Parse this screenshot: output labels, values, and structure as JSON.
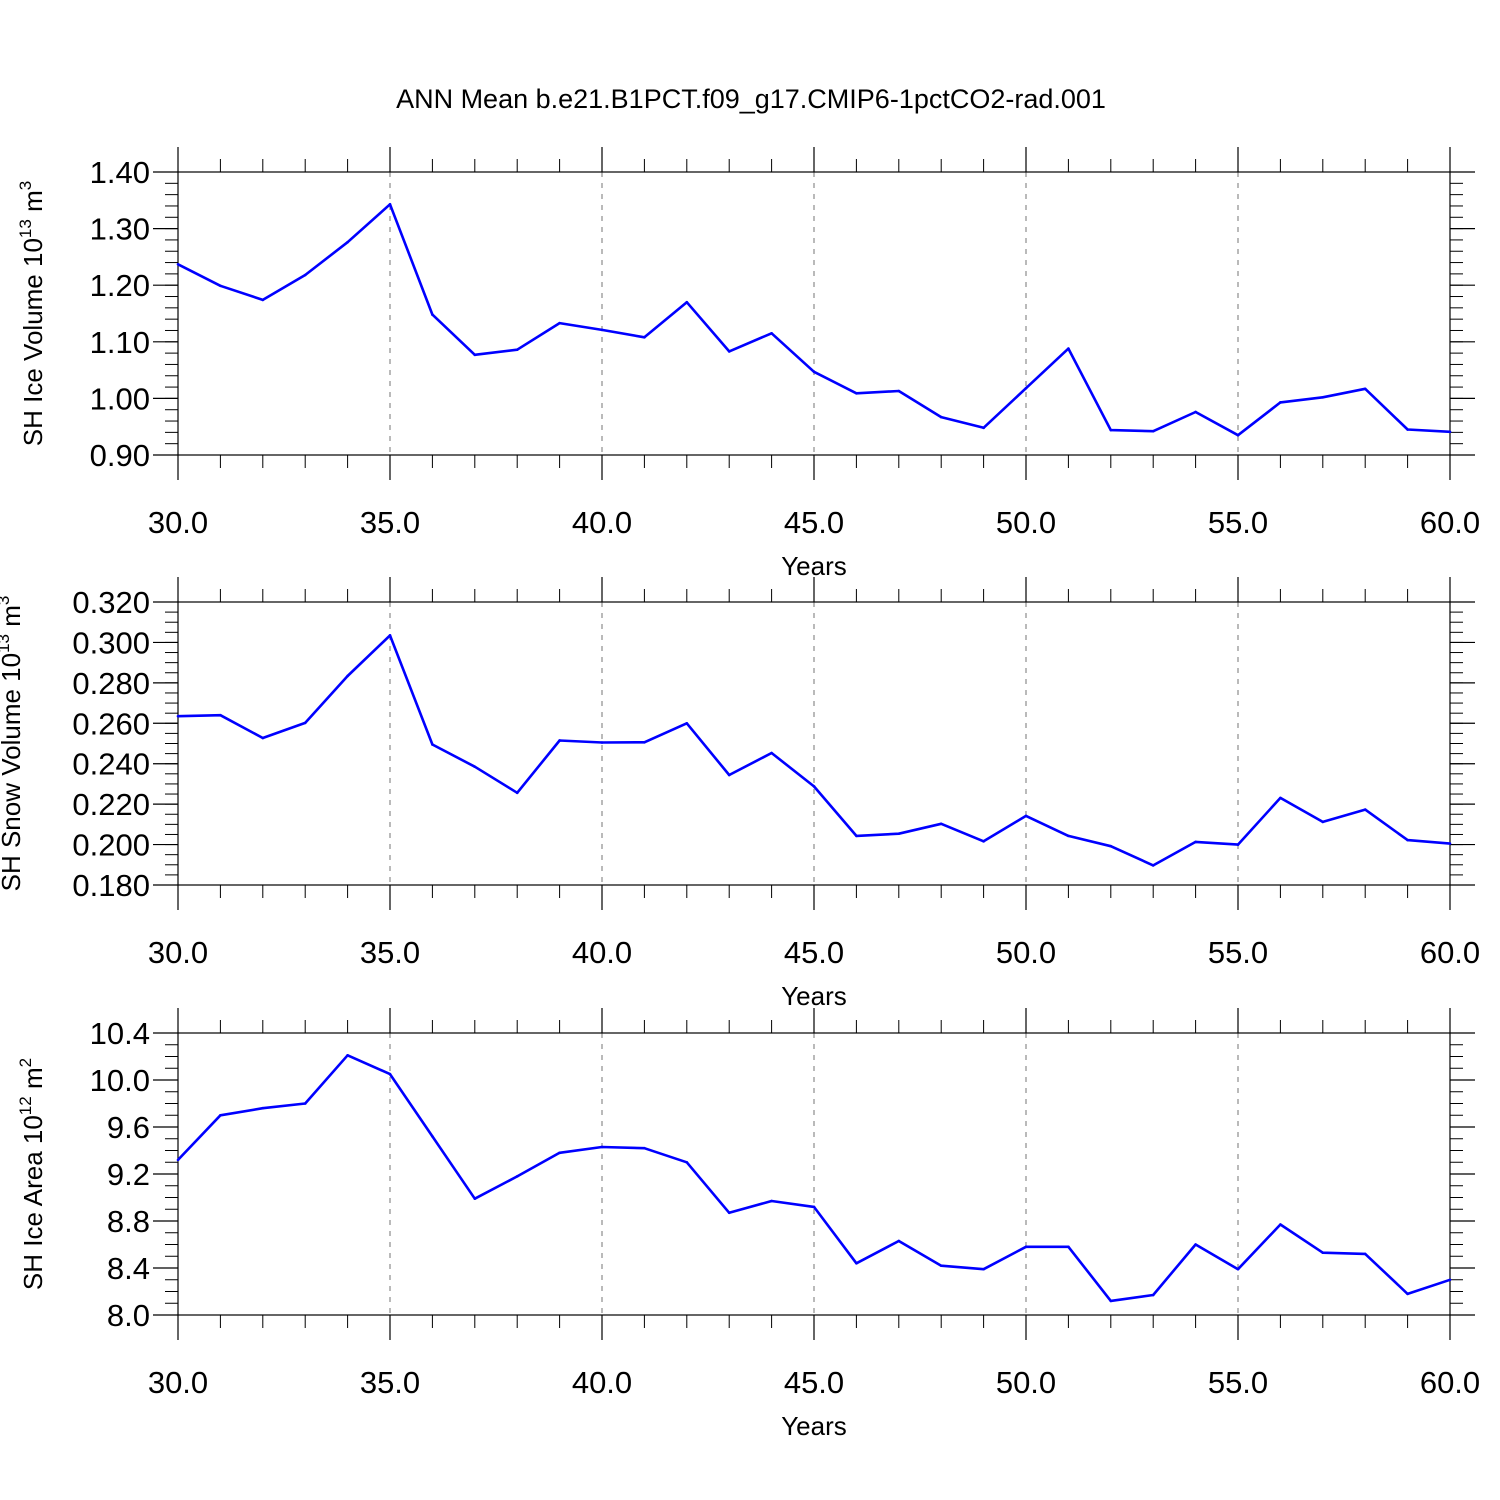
{
  "title": "ANN Mean b.e21.B1PCT.f09_g17.CMIP6-1pctCO2-rad.001",
  "colors": {
    "line": "#0000ff",
    "axis": "#000000",
    "grid": "#8c8c8c"
  },
  "chart_data": [
    {
      "type": "line",
      "xlabel": "Years",
      "ylabel": {
        "text": "SH Ice Volume 10",
        "exponent": "13",
        "unit": " m",
        "unit_exponent": "3"
      },
      "xlim": [
        30,
        60
      ],
      "ylim": [
        0.9,
        1.4
      ],
      "x_ticks": [
        "30.0",
        "35.0",
        "40.0",
        "45.0",
        "50.0",
        "55.0",
        "60.0"
      ],
      "y_ticks": [
        "0.90",
        "1.00",
        "1.10",
        "1.20",
        "1.30",
        "1.40"
      ],
      "grid": "vertical dashed at major x ticks",
      "x": [
        30,
        31,
        32,
        33,
        34,
        35,
        36,
        37,
        38,
        39,
        40,
        41,
        42,
        43,
        44,
        45,
        46,
        47,
        48,
        49,
        50,
        51,
        52,
        53,
        54,
        55,
        56,
        57,
        58,
        59,
        60
      ],
      "values": [
        1.237,
        1.199,
        1.174,
        1.218,
        1.276,
        1.343,
        1.148,
        1.077,
        1.086,
        1.133,
        1.121,
        1.108,
        1.17,
        1.083,
        1.115,
        1.047,
        1.009,
        1.013,
        0.967,
        0.948,
        1.018,
        1.088,
        0.944,
        0.942,
        0.976,
        0.935,
        0.993,
        1.002,
        1.017,
        0.945,
        0.941
      ]
    },
    {
      "type": "line",
      "xlabel": "Years",
      "ylabel": {
        "text": "SH Snow Volume 10",
        "exponent": "13",
        "unit": " m",
        "unit_exponent": "3"
      },
      "xlim": [
        30,
        60
      ],
      "ylim": [
        0.18,
        0.32
      ],
      "x_ticks": [
        "30.0",
        "35.0",
        "40.0",
        "45.0",
        "50.0",
        "55.0",
        "60.0"
      ],
      "y_ticks": [
        "0.180",
        "0.200",
        "0.220",
        "0.240",
        "0.260",
        "0.280",
        "0.300",
        "0.320"
      ],
      "grid": "vertical dashed at major x ticks",
      "x": [
        30,
        31,
        32,
        33,
        34,
        35,
        36,
        37,
        38,
        39,
        40,
        41,
        42,
        43,
        44,
        45,
        46,
        47,
        48,
        49,
        50,
        51,
        52,
        53,
        54,
        55,
        56,
        57,
        58,
        59,
        60
      ],
      "values": [
        0.2635,
        0.264,
        0.2527,
        0.2602,
        0.2834,
        0.3035,
        0.2495,
        0.2385,
        0.2256,
        0.2515,
        0.2505,
        0.2506,
        0.26,
        0.2344,
        0.2453,
        0.2288,
        0.2043,
        0.2054,
        0.2103,
        0.2016,
        0.2142,
        0.2043,
        0.1992,
        0.1897,
        0.2013,
        0.2,
        0.2231,
        0.2112,
        0.2173,
        0.2022,
        0.2005
      ]
    },
    {
      "type": "line",
      "xlabel": "Years",
      "ylabel": {
        "text": "SH Ice Area 10",
        "exponent": "12",
        "unit": " m",
        "unit_exponent": "2"
      },
      "xlim": [
        30,
        60
      ],
      "ylim": [
        8.0,
        10.4
      ],
      "x_ticks": [
        "30.0",
        "35.0",
        "40.0",
        "45.0",
        "50.0",
        "55.0",
        "60.0"
      ],
      "y_ticks": [
        "8.0",
        "8.4",
        "8.8",
        "9.2",
        "9.6",
        "10.0",
        "10.4"
      ],
      "grid": "vertical dashed at major x ticks",
      "x": [
        30,
        31,
        32,
        33,
        34,
        35,
        36,
        37,
        38,
        39,
        40,
        41,
        42,
        43,
        44,
        45,
        46,
        47,
        48,
        49,
        50,
        51,
        52,
        53,
        54,
        55,
        56,
        57,
        58,
        59,
        60
      ],
      "values": [
        9.32,
        9.7,
        9.76,
        9.8,
        10.21,
        10.05,
        9.52,
        8.99,
        9.18,
        9.38,
        9.43,
        9.42,
        9.3,
        8.87,
        8.97,
        8.92,
        8.44,
        8.63,
        8.42,
        8.39,
        8.58,
        8.58,
        8.12,
        8.17,
        8.6,
        8.39,
        8.77,
        8.53,
        8.52,
        8.18,
        8.3
      ]
    }
  ]
}
